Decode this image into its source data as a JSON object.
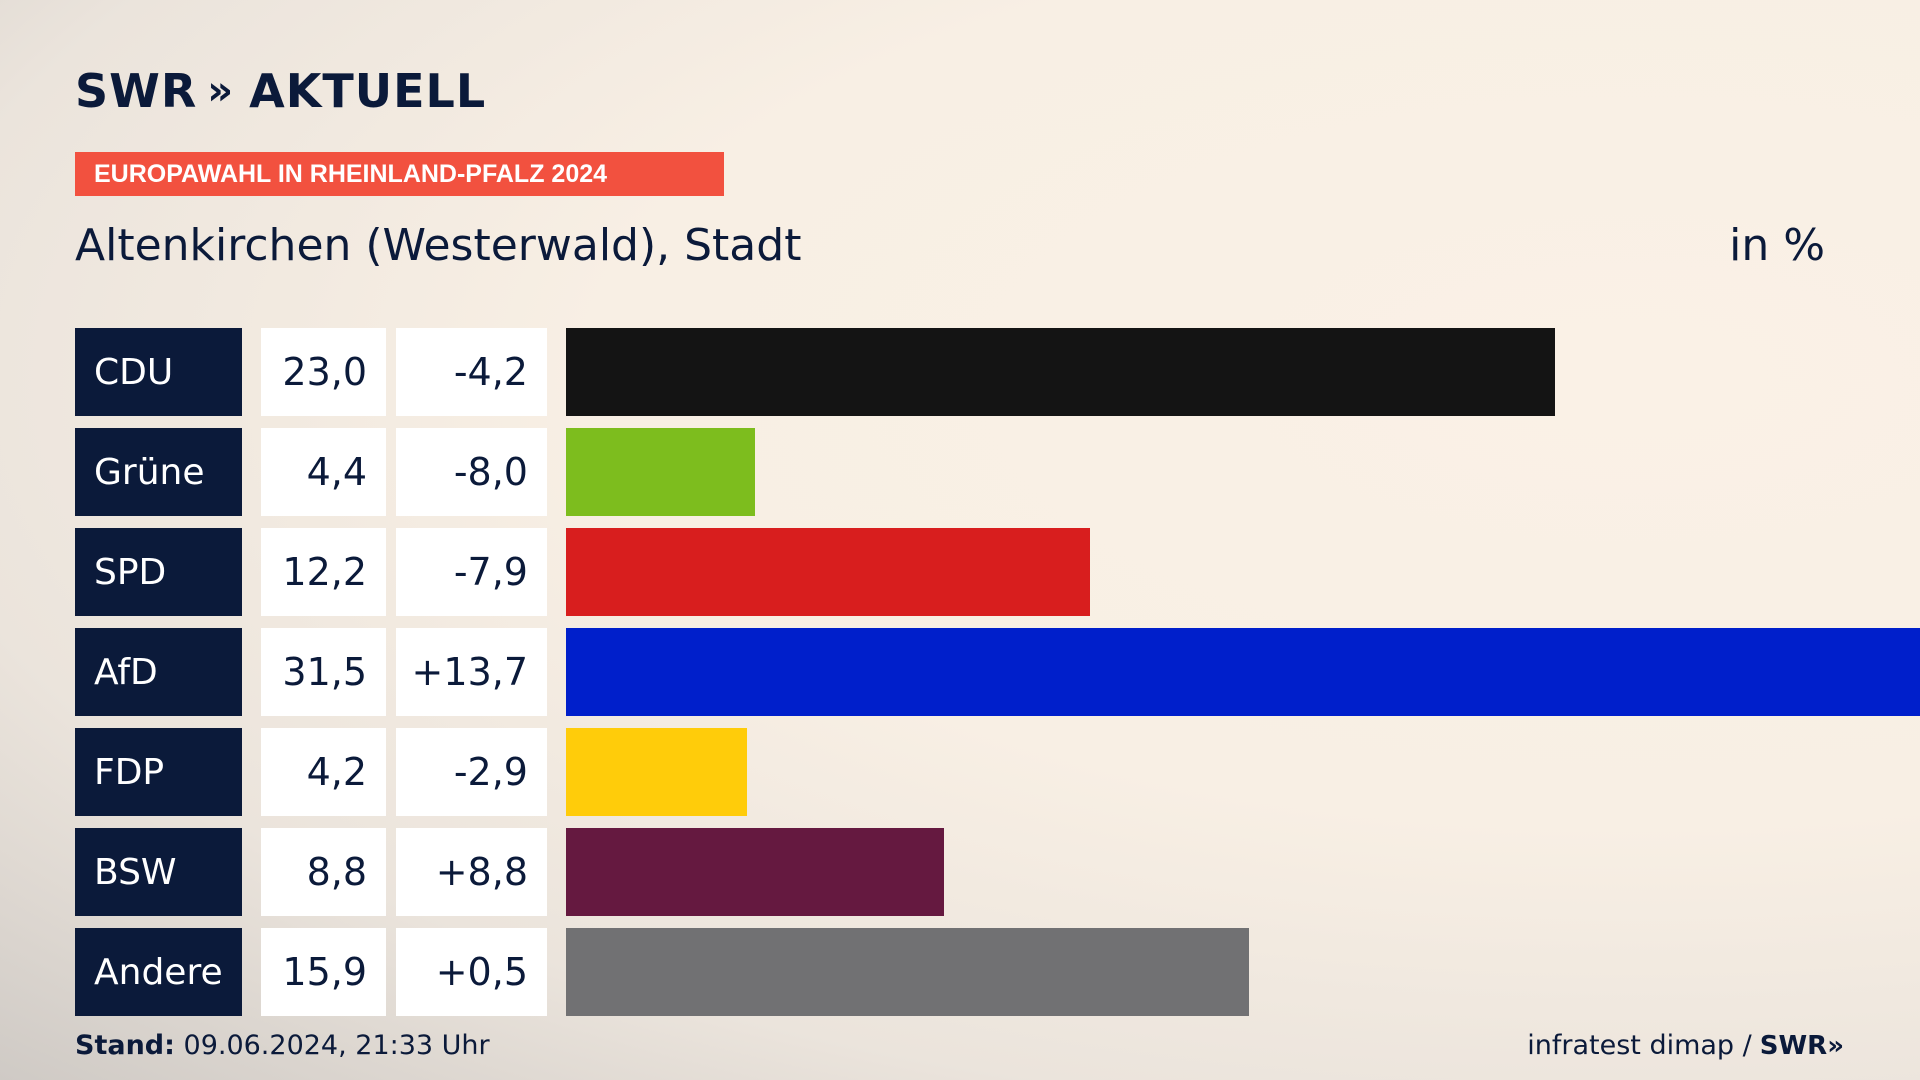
{
  "brand": {
    "logo_text": "SWR",
    "logo_chevrons": "»",
    "product": "AKTUELL"
  },
  "tag": "EUROPAWAHL IN RHEINLAND-PFALZ 2024",
  "region": "Altenkirchen (Westerwald), Stadt",
  "unit": "in %",
  "footer": {
    "stand_label": "Stand:",
    "stand_value": "09.06.2024, 21:33 Uhr",
    "source": "infratest dimap /",
    "source_logo": "SWR»"
  },
  "chart_data": {
    "type": "bar",
    "orientation": "horizontal",
    "categories": [
      "CDU",
      "Grüne",
      "SPD",
      "AfD",
      "FDP",
      "BSW",
      "Andere"
    ],
    "values": [
      23.0,
      4.4,
      12.2,
      31.5,
      4.2,
      8.8,
      15.9
    ],
    "value_labels": [
      "23,0",
      "4,4",
      "12,2",
      "31,5",
      "4,2",
      "8,8",
      "15,9"
    ],
    "changes": [
      -4.2,
      -8.0,
      -7.9,
      13.7,
      -2.9,
      8.8,
      0.5
    ],
    "change_labels": [
      "-4,2",
      "-8,0",
      "-7,9",
      "+13,7",
      "-2,9",
      "+8,8",
      "+0,5"
    ],
    "colors": [
      "#141414",
      "#7dbd1e",
      "#d81e1e",
      "#001fcb",
      "#ffcc0a",
      "#651940",
      "#717173"
    ],
    "xlim": [
      0,
      31.5
    ],
    "grid": false
  }
}
